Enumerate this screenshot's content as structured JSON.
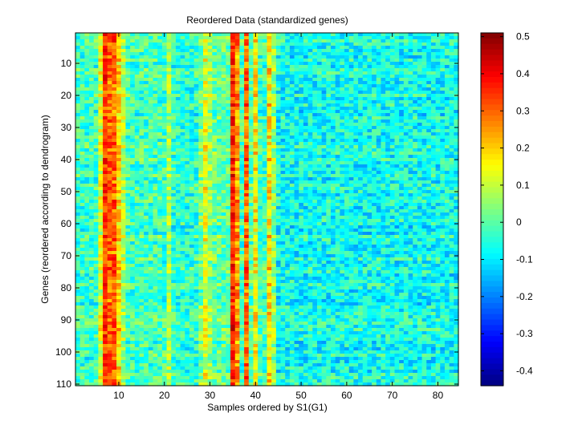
{
  "chart_data": {
    "type": "heatmap",
    "title": "Reordered Data (standardized genes)",
    "xlabel": "Samples ordered by S1(G1)",
    "ylabel": "Genes (reordered according to dendrogram)",
    "n_samples": 84,
    "n_genes": 110,
    "x_range": [
      0.5,
      84.5
    ],
    "y_range": [
      0.5,
      110.5
    ],
    "y_reversed": true,
    "x_ticks": [
      10,
      20,
      30,
      40,
      50,
      60,
      70,
      80
    ],
    "y_ticks": [
      10,
      20,
      30,
      40,
      50,
      60,
      70,
      80,
      90,
      100,
      110
    ],
    "colormap": "jet",
    "color_limits": [
      -0.44,
      0.51
    ],
    "colorbar_ticks": [
      -0.4,
      -0.3,
      -0.2,
      -0.1,
      0,
      0.1,
      0.2,
      0.3,
      0.4,
      0.5
    ],
    "colorbar_tick_labels": [
      "-0.4",
      "-0.3",
      "-0.2",
      "-0.1",
      "0",
      "0.1",
      "0.2",
      "0.3",
      "0.4",
      "0.5"
    ],
    "grid": false,
    "column_profile": [
      {
        "samples": [
          1,
          5
        ],
        "typical_value": -0.03
      },
      {
        "samples": [
          6,
          6
        ],
        "typical_value": 0.12
      },
      {
        "samples": [
          7,
          7
        ],
        "typical_value": 0.34
      },
      {
        "samples": [
          8,
          9
        ],
        "typical_value": 0.3
      },
      {
        "samples": [
          10,
          10
        ],
        "typical_value": 0.18
      },
      {
        "samples": [
          11,
          11
        ],
        "typical_value": 0.08
      },
      {
        "samples": [
          12,
          20
        ],
        "typical_value": -0.02
      },
      {
        "samples": [
          21,
          21
        ],
        "typical_value": 0.08
      },
      {
        "samples": [
          22,
          27
        ],
        "typical_value": -0.04
      },
      {
        "samples": [
          28,
          28
        ],
        "typical_value": 0.03
      },
      {
        "samples": [
          29,
          29
        ],
        "typical_value": 0.13
      },
      {
        "samples": [
          30,
          30
        ],
        "typical_value": 0.06
      },
      {
        "samples": [
          31,
          34
        ],
        "typical_value": 0.01
      },
      {
        "samples": [
          35,
          35
        ],
        "typical_value": 0.36
      },
      {
        "samples": [
          36,
          36
        ],
        "typical_value": 0.26
      },
      {
        "samples": [
          37,
          37
        ],
        "typical_value": -0.02
      },
      {
        "samples": [
          38,
          38
        ],
        "typical_value": 0.3
      },
      {
        "samples": [
          39,
          39
        ],
        "typical_value": 0.0
      },
      {
        "samples": [
          40,
          40
        ],
        "typical_value": 0.16
      },
      {
        "samples": [
          41,
          42
        ],
        "typical_value": -0.02
      },
      {
        "samples": [
          43,
          43
        ],
        "typical_value": 0.18
      },
      {
        "samples": [
          44,
          44
        ],
        "typical_value": 0.06
      },
      {
        "samples": [
          45,
          84
        ],
        "typical_value": -0.07
      }
    ],
    "noise_amplitude": 0.09
  }
}
